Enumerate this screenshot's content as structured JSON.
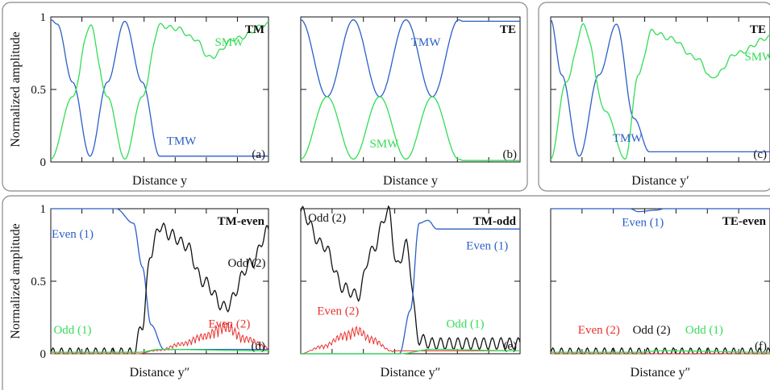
{
  "shared_ylabel": "Normalized amplitude",
  "y_ticks": [
    "0",
    "0.5",
    "1"
  ],
  "colors": {
    "blue": "#2b5fc7",
    "green": "#33dd55",
    "red": "#e8322e",
    "black": "#111111",
    "frame": "#888888"
  },
  "chart_data": [
    {
      "type": "line",
      "panel": "(a)",
      "tag": "TM",
      "xlabel": "Distance y",
      "ylim": [
        0,
        1
      ],
      "series": [
        {
          "name": "TMW",
          "color": "blue",
          "x": [
            0,
            0.03,
            0.1,
            0.18,
            0.26,
            0.34,
            0.42,
            0.5,
            0.58,
            0.66,
            0.73,
            1.0
          ],
          "values": [
            0.98,
            0.95,
            0.55,
            0.04,
            0.55,
            0.97,
            0.55,
            0.04,
            0.04,
            0.04,
            0.04,
            0.04
          ]
        },
        {
          "name": "SMW",
          "color": "green",
          "x": [
            0,
            0.1,
            0.18,
            0.26,
            0.34,
            0.42,
            0.5,
            0.58,
            0.66,
            0.73,
            0.85,
            1.0
          ],
          "values": [
            0.02,
            0.45,
            0.94,
            0.45,
            0.02,
            0.45,
            0.94,
            0.92,
            0.85,
            0.72,
            0.85,
            0.95
          ]
        }
      ]
    },
    {
      "type": "line",
      "panel": "(b)",
      "tag": "TE",
      "xlabel": "Distance y",
      "ylim": [
        0,
        1
      ],
      "series": [
        {
          "name": "TMW",
          "color": "blue",
          "x": [
            0,
            0.12,
            0.24,
            0.36,
            0.48,
            0.6,
            0.72,
            0.74,
            1.0
          ],
          "values": [
            0.98,
            0.45,
            0.98,
            0.45,
            0.98,
            0.45,
            0.98,
            0.97,
            0.97
          ]
        },
        {
          "name": "SMW",
          "color": "green",
          "x": [
            0,
            0.12,
            0.24,
            0.36,
            0.48,
            0.6,
            0.72,
            0.74,
            1.0
          ],
          "values": [
            0.02,
            0.45,
            0.02,
            0.45,
            0.02,
            0.45,
            0.02,
            0.01,
            0.01
          ]
        }
      ]
    },
    {
      "type": "line",
      "panel": "(c)",
      "tag": "TE",
      "xlabel": "Distance y′",
      "ylim": [
        0,
        1
      ],
      "series": [
        {
          "name": "TMW",
          "color": "blue",
          "x": [
            0,
            0.05,
            0.13,
            0.22,
            0.3,
            0.38,
            0.45,
            1.0
          ],
          "values": [
            0.98,
            0.6,
            0.04,
            0.6,
            0.95,
            0.3,
            0.07,
            0.07
          ]
        },
        {
          "name": "SMW",
          "color": "green",
          "x": [
            0,
            0.07,
            0.15,
            0.25,
            0.34,
            0.4,
            0.46,
            0.55,
            0.66,
            0.74,
            0.85,
            1.0
          ],
          "values": [
            0.02,
            0.55,
            0.94,
            0.35,
            0.02,
            0.6,
            0.9,
            0.85,
            0.72,
            0.58,
            0.75,
            0.86
          ]
        }
      ]
    },
    {
      "type": "line",
      "panel": "(d)",
      "tag": "TM-even",
      "xlabel": "Distance y″",
      "ylim": [
        0,
        1
      ],
      "series": [
        {
          "name": "Even (1)",
          "color": "blue",
          "x": [
            0,
            0.3,
            0.38,
            0.42,
            0.46,
            0.52,
            1.0
          ],
          "values": [
            1.0,
            1.0,
            0.9,
            0.6,
            0.2,
            0.03,
            0.03
          ]
        },
        {
          "name": "Odd (2)",
          "color": "black",
          "x": [
            0,
            0.38,
            0.42,
            0.46,
            0.5,
            0.55,
            0.62,
            0.7,
            0.8,
            0.92,
            1.0
          ],
          "values": [
            0.0,
            0.0,
            0.2,
            0.7,
            0.88,
            0.82,
            0.75,
            0.5,
            0.32,
            0.62,
            0.85
          ]
        },
        {
          "name": "Even (2)",
          "color": "red",
          "x": [
            0,
            0.4,
            0.5,
            0.6,
            0.7,
            0.8,
            0.9,
            1.0
          ],
          "values": [
            0.0,
            0.0,
            0.03,
            0.08,
            0.14,
            0.22,
            0.12,
            0.05
          ]
        },
        {
          "name": "Odd (1)",
          "color": "green",
          "x": [
            0,
            0.4,
            0.5,
            1.0
          ],
          "values": [
            0.01,
            0.01,
            0.03,
            0.02
          ]
        }
      ]
    },
    {
      "type": "line",
      "panel": "(e)",
      "tag": "TM-odd",
      "xlabel": "Distance y″",
      "ylim": [
        0,
        1
      ],
      "series": [
        {
          "name": "Odd (2)",
          "color": "black",
          "x": [
            0,
            0.1,
            0.2,
            0.26,
            0.32,
            0.4,
            0.44,
            0.48,
            0.54,
            0.6,
            1.0
          ],
          "values": [
            0.98,
            0.75,
            0.45,
            0.4,
            0.7,
            0.98,
            0.6,
            0.75,
            0.1,
            0.07,
            0.07
          ]
        },
        {
          "name": "Even (1)",
          "color": "blue",
          "x": [
            0,
            0.45,
            0.5,
            0.54,
            0.58,
            0.62,
            1.0
          ],
          "values": [
            0.0,
            0.0,
            0.3,
            0.9,
            0.92,
            0.86,
            0.86
          ]
        },
        {
          "name": "Even (2)",
          "color": "red",
          "x": [
            0,
            0.1,
            0.2,
            0.26,
            0.32,
            0.42,
            0.5,
            1.0
          ],
          "values": [
            0.0,
            0.06,
            0.15,
            0.19,
            0.12,
            0.02,
            0.02,
            0.02
          ]
        },
        {
          "name": "Odd (1)",
          "color": "green",
          "x": [
            0,
            0.45,
            0.6,
            1.0
          ],
          "values": [
            0.0,
            0.0,
            0.03,
            0.02
          ]
        }
      ]
    },
    {
      "type": "line",
      "panel": "(f)",
      "tag": "TE-even",
      "xlabel": "Distance y″",
      "ylim": [
        0,
        1
      ],
      "series": [
        {
          "name": "Even (1)",
          "color": "blue",
          "x": [
            0,
            0.36,
            0.4,
            0.48,
            0.52,
            1.0
          ],
          "values": [
            1.0,
            1.0,
            0.98,
            0.99,
            1.0,
            1.0
          ]
        },
        {
          "name": "Odd (2)",
          "color": "black",
          "x": [
            0,
            1.0
          ],
          "values": [
            0.0,
            0.0
          ]
        },
        {
          "name": "Even (2)",
          "color": "red",
          "x": [
            0,
            1.0
          ],
          "values": [
            0.0,
            0.0
          ]
        },
        {
          "name": "Odd (1)",
          "color": "green",
          "x": [
            0,
            0.4,
            0.5,
            1.0
          ],
          "values": [
            0.01,
            0.01,
            0.02,
            0.01
          ]
        }
      ]
    }
  ],
  "labels": [
    {
      "panel": 0,
      "text": "SMW",
      "color": "green",
      "fx": 0.82,
      "fy": 0.8
    },
    {
      "panel": 0,
      "text": "TMW",
      "color": "blue",
      "fx": 0.6,
      "fy": 0.12
    },
    {
      "panel": 1,
      "text": "TMW",
      "color": "blue",
      "fx": 0.57,
      "fy": 0.8
    },
    {
      "panel": 1,
      "text": "SMW",
      "color": "green",
      "fx": 0.38,
      "fy": 0.1
    },
    {
      "panel": 2,
      "text": "SMW",
      "color": "green",
      "fx": 0.95,
      "fy": 0.7
    },
    {
      "panel": 2,
      "text": "TMW",
      "color": "blue",
      "fx": 0.35,
      "fy": 0.14
    },
    {
      "panel": 3,
      "text": "Even (1)",
      "color": "blue",
      "fx": 0.1,
      "fy": 0.8
    },
    {
      "panel": 3,
      "text": "Odd (2)",
      "color": "black",
      "fx": 0.9,
      "fy": 0.6
    },
    {
      "panel": 3,
      "text": "Even (2)",
      "color": "red",
      "fx": 0.82,
      "fy": 0.18
    },
    {
      "panel": 3,
      "text": "Odd (1)",
      "color": "green",
      "fx": 0.1,
      "fy": 0.14
    },
    {
      "panel": 4,
      "text": "Odd (2)",
      "color": "black",
      "fx": 0.12,
      "fy": 0.91
    },
    {
      "panel": 4,
      "text": "Even (1)",
      "color": "blue",
      "fx": 0.85,
      "fy": 0.72
    },
    {
      "panel": 4,
      "text": "Even (2)",
      "color": "red",
      "fx": 0.17,
      "fy": 0.27
    },
    {
      "panel": 4,
      "text": "Odd (1)",
      "color": "green",
      "fx": 0.75,
      "fy": 0.18
    },
    {
      "panel": 5,
      "text": "Even (1)",
      "color": "blue",
      "fx": 0.42,
      "fy": 0.88
    },
    {
      "panel": 5,
      "text": "Even (2)",
      "color": "red",
      "fx": 0.22,
      "fy": 0.14
    },
    {
      "panel": 5,
      "text": "Odd (2)",
      "color": "black",
      "fx": 0.46,
      "fy": 0.14
    },
    {
      "panel": 5,
      "text": "Odd (1)",
      "color": "green",
      "fx": 0.7,
      "fy": 0.14
    }
  ]
}
